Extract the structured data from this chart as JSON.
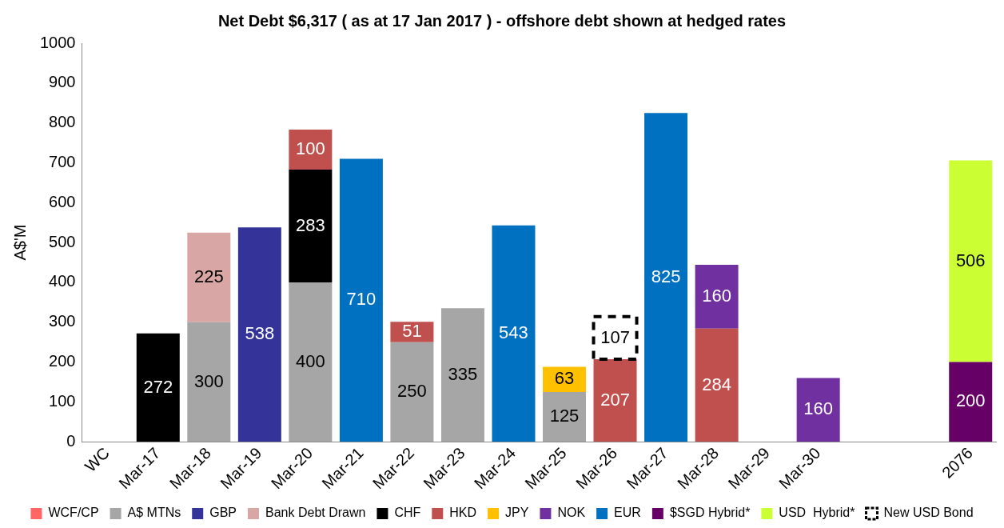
{
  "chart_data": {
    "type": "bar",
    "title": "Net Debt $6,317 ( as at 17 Jan 2017 ) - offshore debt shown at hedged rates",
    "ylabel": "A$'M",
    "categories": [
      "WC",
      "Mar-17",
      "Mar-18",
      "Mar-19",
      "Mar-20",
      "Mar-21",
      "Mar-22",
      "Mar-23",
      "Mar-24",
      "Mar-25",
      "Mar-26",
      "Mar-27",
      "Mar-28",
      "Mar-29",
      "Mar-30",
      null,
      null,
      "2076"
    ],
    "stacked": true,
    "ylim": [
      0,
      1000
    ],
    "yticks": [
      0,
      100,
      200,
      300,
      400,
      500,
      600,
      700,
      800,
      900,
      1000
    ],
    "grid": false,
    "legend": "bottom",
    "data_labels": true,
    "series": [
      {
        "name": "WCF/CP",
        "color": "#ff6666",
        "values": [
          null,
          null,
          null,
          null,
          null,
          null,
          null,
          null,
          null,
          null,
          null,
          null,
          null,
          null,
          null,
          null,
          null,
          null
        ]
      },
      {
        "name": "A$ MTNs",
        "color": "#a6a6a6",
        "values": [
          null,
          null,
          300,
          null,
          400,
          null,
          250,
          335,
          null,
          125,
          null,
          null,
          null,
          null,
          null,
          null,
          null,
          null
        ]
      },
      {
        "name": "GBP",
        "color": "#333399",
        "values": [
          null,
          null,
          null,
          538,
          null,
          null,
          null,
          null,
          null,
          null,
          null,
          null,
          null,
          null,
          null,
          null,
          null,
          null
        ]
      },
      {
        "name": "Bank Debt Drawn",
        "color": "#d9a6a6",
        "values": [
          null,
          null,
          225,
          null,
          null,
          null,
          null,
          null,
          null,
          null,
          null,
          null,
          null,
          null,
          null,
          null,
          null,
          null
        ]
      },
      {
        "name": "CHF",
        "color": "#000000",
        "values": [
          null,
          272,
          null,
          null,
          283,
          null,
          null,
          null,
          null,
          null,
          null,
          null,
          null,
          null,
          null,
          null,
          null,
          null
        ]
      },
      {
        "name": "HKD",
        "color": "#c0504d",
        "values": [
          null,
          null,
          null,
          null,
          100,
          null,
          51,
          null,
          null,
          null,
          207,
          null,
          284,
          null,
          null,
          null,
          null,
          null
        ]
      },
      {
        "name": "JPY",
        "color": "#ffc000",
        "values": [
          null,
          null,
          null,
          null,
          null,
          null,
          null,
          null,
          null,
          63,
          null,
          null,
          null,
          null,
          null,
          null,
          null,
          null
        ]
      },
      {
        "name": "NOK",
        "color": "#7030a0",
        "values": [
          null,
          null,
          null,
          null,
          null,
          null,
          null,
          null,
          null,
          null,
          null,
          null,
          160,
          null,
          160,
          null,
          null,
          null
        ]
      },
      {
        "name": "EUR",
        "color": "#0070c0",
        "values": [
          null,
          null,
          null,
          null,
          null,
          710,
          null,
          null,
          543,
          null,
          null,
          825,
          null,
          null,
          null,
          null,
          null,
          null
        ]
      },
      {
        "name": "$SGD Hybrid*",
        "color": "#660066",
        "values": [
          null,
          null,
          null,
          null,
          null,
          null,
          null,
          null,
          null,
          null,
          null,
          null,
          null,
          null,
          null,
          null,
          null,
          200
        ]
      },
      {
        "name": "USD  Hybrid*",
        "color": "#ccff33",
        "values": [
          null,
          null,
          null,
          null,
          null,
          null,
          null,
          null,
          null,
          null,
          null,
          null,
          null,
          null,
          null,
          null,
          null,
          506
        ]
      },
      {
        "name": "New USD Bond",
        "color": "#000000",
        "line_style": "dashed",
        "values": [
          null,
          null,
          null,
          null,
          null,
          null,
          null,
          null,
          null,
          null,
          107,
          null,
          null,
          null,
          null,
          null,
          null,
          null
        ]
      }
    ]
  }
}
